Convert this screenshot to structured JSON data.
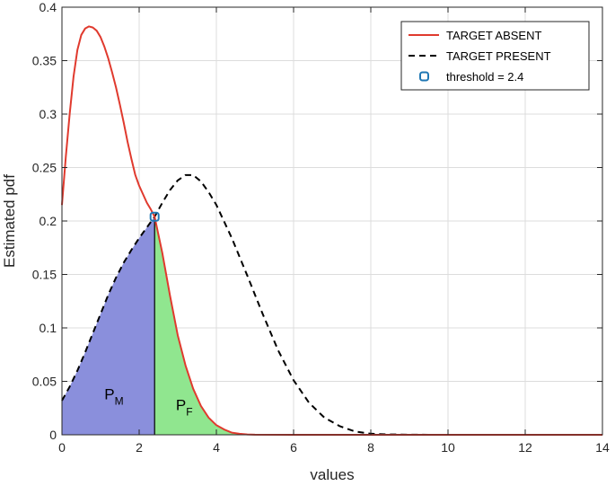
{
  "chart_data": {
    "type": "line",
    "xlabel": "values",
    "ylabel": "Estimated pdf",
    "xlim": [
      0,
      14
    ],
    "ylim": [
      0,
      0.4
    ],
    "x_ticks": [
      0,
      2,
      4,
      6,
      8,
      10,
      12,
      14
    ],
    "y_ticks": [
      0,
      0.05,
      0.1,
      0.15,
      0.2,
      0.25,
      0.3,
      0.35,
      0.4
    ],
    "x_tick_labels": [
      "0",
      "2",
      "4",
      "6",
      "8",
      "10",
      "12",
      "14"
    ],
    "y_tick_labels": [
      "0",
      "0.05",
      "0.1",
      "0.15",
      "0.2",
      "0.25",
      "0.3",
      "0.35",
      "0.4"
    ],
    "grid": true,
    "legend_position": "top-right",
    "series": [
      {
        "name": "TARGET ABSENT",
        "style": "solid",
        "color": "#e03a2e",
        "x": [
          0,
          0.1,
          0.2,
          0.3,
          0.4,
          0.5,
          0.6,
          0.7,
          0.8,
          0.9,
          1.0,
          1.1,
          1.2,
          1.3,
          1.4,
          1.5,
          1.6,
          1.7,
          1.8,
          1.9,
          2.0,
          2.1,
          2.2,
          2.3,
          2.4,
          2.6,
          2.8,
          3.0,
          3.2,
          3.4,
          3.6,
          3.8,
          4.0,
          4.2,
          4.4,
          4.6,
          4.8,
          5.0,
          6.0,
          8.0,
          10.0,
          12.0,
          14.0
        ],
        "y": [
          0.215,
          0.26,
          0.3,
          0.335,
          0.36,
          0.374,
          0.38,
          0.382,
          0.381,
          0.378,
          0.372,
          0.363,
          0.352,
          0.339,
          0.325,
          0.309,
          0.292,
          0.274,
          0.258,
          0.243,
          0.233,
          0.225,
          0.217,
          0.211,
          0.204,
          0.17,
          0.13,
          0.093,
          0.065,
          0.043,
          0.027,
          0.016,
          0.009,
          0.005,
          0.002,
          0.001,
          0.0003,
          0.0001,
          0,
          0,
          0,
          0,
          0
        ]
      },
      {
        "name": "TARGET PRESENT",
        "style": "dashed",
        "color": "#000000",
        "x": [
          0,
          0.2,
          0.4,
          0.6,
          0.8,
          1.0,
          1.2,
          1.4,
          1.6,
          1.8,
          2.0,
          2.2,
          2.4,
          2.6,
          2.8,
          3.0,
          3.2,
          3.4,
          3.6,
          3.8,
          4.0,
          4.4,
          4.8,
          5.2,
          5.6,
          6.0,
          6.4,
          6.8,
          7.2,
          7.6,
          8.0,
          8.4,
          9.0,
          10.0,
          12.0,
          14.0
        ],
        "y": [
          0.032,
          0.045,
          0.06,
          0.077,
          0.095,
          0.113,
          0.131,
          0.147,
          0.161,
          0.173,
          0.184,
          0.194,
          0.204,
          0.217,
          0.229,
          0.238,
          0.243,
          0.243,
          0.237,
          0.227,
          0.215,
          0.184,
          0.149,
          0.113,
          0.079,
          0.051,
          0.03,
          0.016,
          0.008,
          0.003,
          0.001,
          0.0004,
          0.0001,
          0,
          0,
          0
        ]
      }
    ],
    "threshold": {
      "label": "threshold = 2.4",
      "x": 2.4,
      "y": 0.204,
      "color": "#1f77b4"
    },
    "regions": [
      {
        "label": "P",
        "subscript": "M",
        "label_pos": [
          1.1,
          0.033
        ],
        "color": "#8a8fdc",
        "x_from": 0,
        "x_to": 2.4,
        "under": "TARGET PRESENT"
      },
      {
        "label": "P",
        "subscript": "F",
        "label_pos": [
          2.95,
          0.023
        ],
        "color": "#90e68f",
        "x_from": 2.4,
        "x_to": 5.0,
        "under": "TARGET ABSENT"
      }
    ]
  }
}
